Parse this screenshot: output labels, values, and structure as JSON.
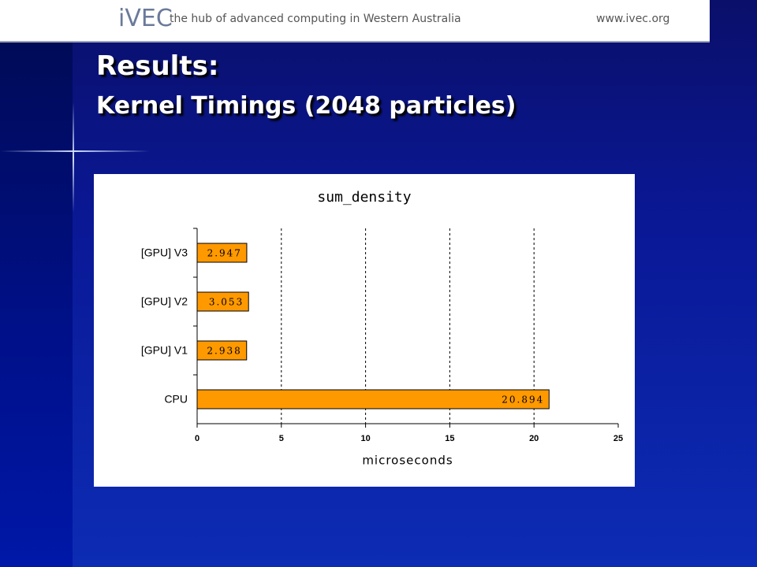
{
  "header": {
    "logo": "iVEC",
    "tagline": "the hub of advanced computing in Western Australia",
    "url": "www.ivec.org"
  },
  "title": "Results:",
  "subtitle": "Kernel Timings (2048 particles)",
  "chart_data": {
    "type": "bar",
    "orientation": "horizontal",
    "title": "sum_density",
    "categories": [
      "[GPU] V3",
      "[GPU] V2",
      "[GPU] V1",
      "CPU"
    ],
    "values": [
      2.947,
      3.053,
      2.938,
      20.894
    ],
    "color": "#ff9900",
    "x_label": "microseconds",
    "xlim": [
      0,
      25
    ],
    "xticks": [
      0,
      5,
      10,
      15,
      20,
      25
    ],
    "grid": true
  }
}
